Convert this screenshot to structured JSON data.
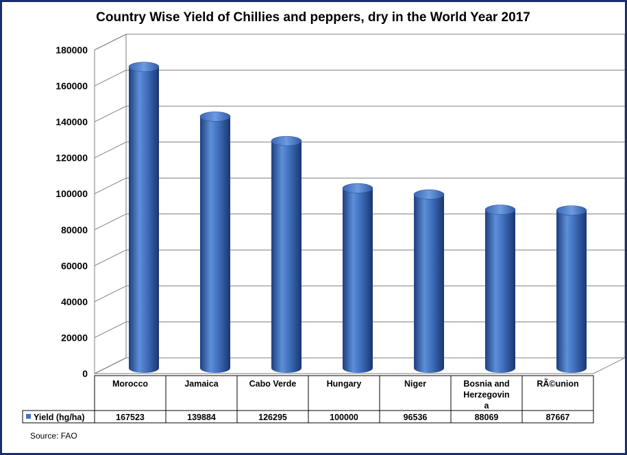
{
  "chart_data": {
    "type": "bar",
    "title": "Country Wise Yield of Chillies and peppers, dry in the World Year 2017",
    "categories": [
      "Morocco",
      "Jamaica",
      "Cabo Verde",
      "Hungary",
      "Niger",
      "Bosnia and Herzegovina",
      "RÃ©union"
    ],
    "category_label_lines": [
      [
        "Morocco"
      ],
      [
        "Jamaica"
      ],
      [
        "Cabo Verde"
      ],
      [
        "Hungary"
      ],
      [
        "Niger"
      ],
      [
        "Bosnia and",
        "Herzegovin",
        "a"
      ],
      [
        "RÃ©union"
      ]
    ],
    "series": [
      {
        "name": "Yield (hg/ha)",
        "values": [
          167523,
          139884,
          126295,
          100000,
          96536,
          88069,
          87667
        ]
      }
    ],
    "value_labels": [
      "167523",
      "139884",
      "126295",
      "100000",
      "96536",
      "88069",
      "87667"
    ],
    "yticks": [
      "0",
      "20000",
      "40000",
      "60000",
      "80000",
      "100000",
      "120000",
      "140000",
      "160000",
      "180000"
    ],
    "ylim": [
      0,
      180000
    ],
    "grid": true,
    "legend_placement": "data-table",
    "bar_style": "3d-cylinder",
    "bar_color": "#4472c4",
    "source": "Source: FAO"
  }
}
